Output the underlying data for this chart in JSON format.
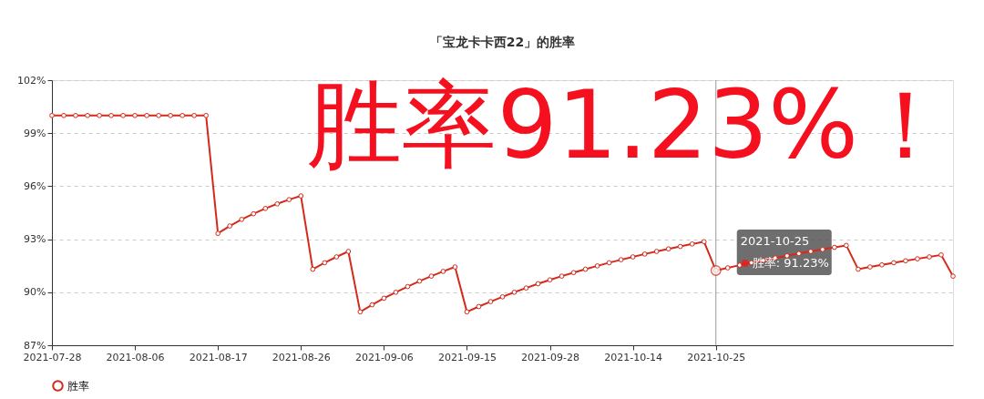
{
  "chart_data": {
    "type": "line",
    "title": "「宝龙卡卡西22」的胜率",
    "categories": [
      "2021-07-28",
      null,
      null,
      null,
      null,
      null,
      null,
      "2021-08-06",
      null,
      null,
      null,
      null,
      null,
      null,
      "2021-08-17",
      null,
      null,
      null,
      null,
      null,
      null,
      "2021-08-26",
      null,
      null,
      null,
      null,
      null,
      null,
      "2021-09-06",
      null,
      null,
      null,
      null,
      null,
      null,
      "2021-09-15",
      null,
      null,
      null,
      null,
      null,
      null,
      "2021-09-28",
      null,
      null,
      null,
      null,
      null,
      null,
      "2021-10-14",
      null,
      null,
      null,
      null,
      null,
      null,
      "2021-10-25",
      null,
      null,
      null,
      null,
      null,
      null,
      null,
      null,
      null,
      null,
      null,
      null,
      null,
      null,
      null,
      null,
      null,
      null,
      null,
      null
    ],
    "series": [
      {
        "name": "胜率",
        "color": "#d42a1c",
        "values": [
          100,
          100,
          100,
          100,
          100,
          100,
          100,
          100,
          100,
          100,
          100,
          100,
          100,
          100,
          93.33,
          93.75,
          94.12,
          94.44,
          94.74,
          95.0,
          95.24,
          95.45,
          91.3,
          91.67,
          92.0,
          92.31,
          88.89,
          89.29,
          89.66,
          90.0,
          90.32,
          90.63,
          90.91,
          91.18,
          91.43,
          88.89,
          89.19,
          89.47,
          89.74,
          90.0,
          90.24,
          90.48,
          90.7,
          90.91,
          91.11,
          91.3,
          91.49,
          91.67,
          91.84,
          92.0,
          92.16,
          92.31,
          92.45,
          92.59,
          92.73,
          92.86,
          91.23,
          91.38,
          91.53,
          91.67,
          91.8,
          91.94,
          92.06,
          92.19,
          92.31,
          92.42,
          92.54,
          92.65,
          91.3,
          91.43,
          91.55,
          91.67,
          91.78,
          91.89,
          92.0,
          92.11,
          90.91
        ]
      }
    ],
    "ylim": [
      87,
      102
    ],
    "yticks": [
      {
        "value": 87,
        "label": "87%"
      },
      {
        "value": 90,
        "label": "90%"
      },
      {
        "value": 93,
        "label": "93%"
      },
      {
        "value": 96,
        "label": "96%"
      },
      {
        "value": 99,
        "label": "99%"
      },
      {
        "value": 102,
        "label": "102%"
      }
    ],
    "grid": "y",
    "legend": "bottom",
    "marker": "circle",
    "line_style": "solid",
    "ref_lines": [
      {
        "axis": "x",
        "value": "2021-10-25",
        "color": "#999999"
      }
    ],
    "annotations": [
      "胜率91.23%！",
      {
        "text": "2021-10-25\n胜率: 91.23%",
        "x": "2021-10-25",
        "y": 91.23
      }
    ]
  }
}
